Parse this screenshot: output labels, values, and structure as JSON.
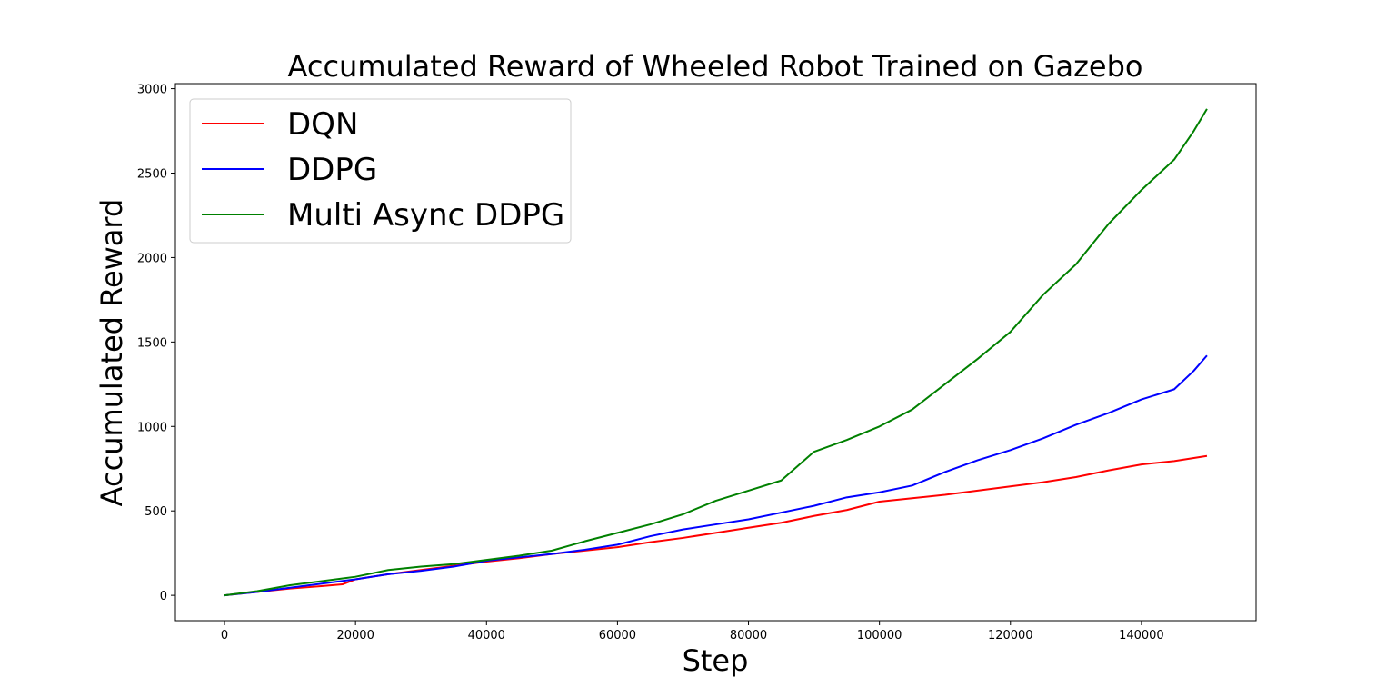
{
  "chart_data": {
    "type": "line",
    "title": "Accumulated Reward of Wheeled Robot Trained on Gazebo",
    "xlabel": "Step",
    "ylabel": "Accumulated Reward",
    "xlim": [
      -7500,
      157500
    ],
    "ylim": [
      -150,
      3030
    ],
    "xticks": [
      0,
      20000,
      40000,
      60000,
      80000,
      100000,
      120000,
      140000
    ],
    "yticks": [
      0,
      500,
      1000,
      1500,
      2000,
      2500,
      3000
    ],
    "grid": false,
    "legend_position": "top-left",
    "series": [
      {
        "name": "DQN",
        "color": "#ff0000",
        "points": [
          [
            0,
            0
          ],
          [
            5000,
            20
          ],
          [
            10000,
            40
          ],
          [
            15000,
            55
          ],
          [
            18000,
            65
          ],
          [
            20000,
            95
          ],
          [
            25000,
            125
          ],
          [
            30000,
            150
          ],
          [
            35000,
            175
          ],
          [
            40000,
            200
          ],
          [
            45000,
            220
          ],
          [
            50000,
            245
          ],
          [
            55000,
            265
          ],
          [
            60000,
            285
          ],
          [
            65000,
            315
          ],
          [
            70000,
            340
          ],
          [
            75000,
            370
          ],
          [
            80000,
            400
          ],
          [
            85000,
            430
          ],
          [
            90000,
            470
          ],
          [
            95000,
            505
          ],
          [
            100000,
            555
          ],
          [
            105000,
            575
          ],
          [
            110000,
            595
          ],
          [
            115000,
            620
          ],
          [
            120000,
            645
          ],
          [
            125000,
            670
          ],
          [
            130000,
            700
          ],
          [
            135000,
            740
          ],
          [
            140000,
            775
          ],
          [
            145000,
            795
          ],
          [
            150000,
            825
          ]
        ]
      },
      {
        "name": "DDPG",
        "color": "#0000ff",
        "points": [
          [
            0,
            0
          ],
          [
            5000,
            20
          ],
          [
            10000,
            45
          ],
          [
            15000,
            70
          ],
          [
            20000,
            95
          ],
          [
            25000,
            125
          ],
          [
            30000,
            145
          ],
          [
            35000,
            170
          ],
          [
            40000,
            205
          ],
          [
            45000,
            225
          ],
          [
            50000,
            245
          ],
          [
            55000,
            270
          ],
          [
            60000,
            300
          ],
          [
            65000,
            350
          ],
          [
            70000,
            390
          ],
          [
            75000,
            420
          ],
          [
            80000,
            450
          ],
          [
            85000,
            490
          ],
          [
            90000,
            530
          ],
          [
            95000,
            580
          ],
          [
            100000,
            610
          ],
          [
            105000,
            650
          ],
          [
            110000,
            730
          ],
          [
            115000,
            800
          ],
          [
            120000,
            860
          ],
          [
            125000,
            930
          ],
          [
            130000,
            1010
          ],
          [
            135000,
            1080
          ],
          [
            140000,
            1160
          ],
          [
            145000,
            1220
          ],
          [
            148000,
            1330
          ],
          [
            150000,
            1420
          ]
        ]
      },
      {
        "name": "Multi Async DDPG",
        "color": "#008000",
        "points": [
          [
            0,
            0
          ],
          [
            5000,
            25
          ],
          [
            10000,
            60
          ],
          [
            15000,
            85
          ],
          [
            20000,
            110
          ],
          [
            25000,
            150
          ],
          [
            30000,
            170
          ],
          [
            35000,
            185
          ],
          [
            40000,
            210
          ],
          [
            45000,
            235
          ],
          [
            50000,
            265
          ],
          [
            55000,
            320
          ],
          [
            60000,
            370
          ],
          [
            65000,
            420
          ],
          [
            70000,
            480
          ],
          [
            75000,
            560
          ],
          [
            80000,
            620
          ],
          [
            85000,
            680
          ],
          [
            90000,
            850
          ],
          [
            95000,
            920
          ],
          [
            100000,
            1000
          ],
          [
            105000,
            1100
          ],
          [
            110000,
            1250
          ],
          [
            115000,
            1400
          ],
          [
            120000,
            1560
          ],
          [
            125000,
            1780
          ],
          [
            130000,
            1960
          ],
          [
            135000,
            2200
          ],
          [
            140000,
            2400
          ],
          [
            145000,
            2580
          ],
          [
            148000,
            2750
          ],
          [
            150000,
            2880
          ]
        ]
      }
    ]
  }
}
